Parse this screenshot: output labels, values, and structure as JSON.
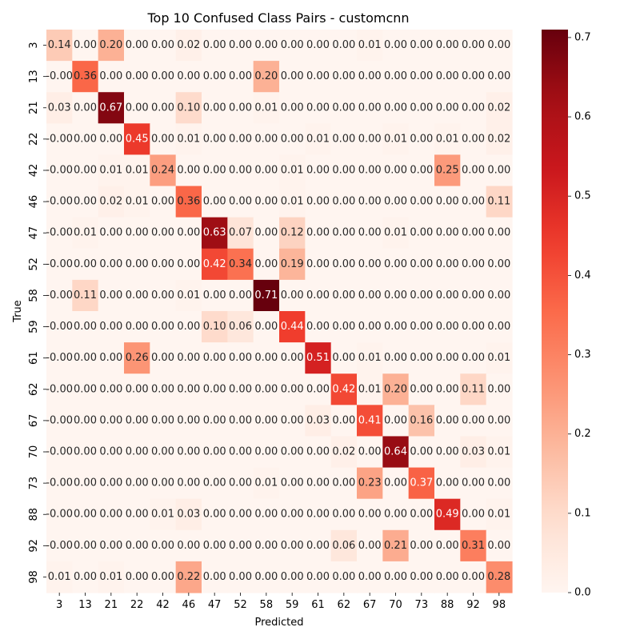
{
  "chart_data": {
    "type": "heatmap",
    "title": "Top 10 Confused Class Pairs - customcnn",
    "xlabel": "Predicted",
    "ylabel": "True",
    "x_categories": [
      "3",
      "13",
      "21",
      "22",
      "42",
      "46",
      "47",
      "52",
      "58",
      "59",
      "61",
      "62",
      "67",
      "70",
      "73",
      "88",
      "92",
      "98"
    ],
    "y_categories": [
      "3",
      "13",
      "21",
      "22",
      "42",
      "46",
      "47",
      "52",
      "58",
      "59",
      "61",
      "62",
      "67",
      "70",
      "73",
      "88",
      "92",
      "98"
    ],
    "values": [
      [
        "0.14",
        "0.00",
        "0.20",
        "0.00",
        "0.00",
        "0.02",
        "0.00",
        "0.00",
        "0.00",
        "0.00",
        "0.00",
        "0.00",
        "0.01",
        "0.00",
        "0.00",
        "0.00",
        "0.00",
        "0.00"
      ],
      [
        "-0.00",
        "0.36",
        "0.00",
        "0.00",
        "0.00",
        "0.00",
        "0.00",
        "0.00",
        "0.20",
        "0.00",
        "0.00",
        "0.00",
        "0.00",
        "0.00",
        "0.00",
        "0.00",
        "0.00",
        "0.00"
      ],
      [
        "0.03",
        "0.00",
        "0.67",
        "0.00",
        "0.00",
        "0.10",
        "0.00",
        "0.00",
        "0.01",
        "0.00",
        "0.00",
        "0.00",
        "0.00",
        "0.00",
        "0.00",
        "0.00",
        "0.00",
        "0.02"
      ],
      [
        "-0.00",
        "0.00",
        "0.00",
        "0.45",
        "0.00",
        "0.01",
        "0.00",
        "0.00",
        "0.00",
        "0.00",
        "0.01",
        "0.00",
        "0.00",
        "0.01",
        "0.00",
        "0.01",
        "0.00",
        "0.02"
      ],
      [
        "-0.00",
        "0.00",
        "0.01",
        "0.01",
        "0.24",
        "0.00",
        "0.00",
        "0.00",
        "0.00",
        "0.01",
        "0.00",
        "0.00",
        "0.00",
        "0.00",
        "0.00",
        "0.25",
        "0.00",
        "0.00"
      ],
      [
        "-0.00",
        "0.00",
        "0.02",
        "0.01",
        "0.00",
        "0.36",
        "0.00",
        "0.00",
        "0.00",
        "0.01",
        "0.00",
        "0.00",
        "0.00",
        "0.00",
        "0.00",
        "0.00",
        "0.00",
        "0.11"
      ],
      [
        "-0.00",
        "0.01",
        "0.00",
        "0.00",
        "0.00",
        "0.00",
        "0.63",
        "0.07",
        "0.00",
        "0.12",
        "0.00",
        "0.00",
        "0.00",
        "0.01",
        "0.00",
        "0.00",
        "0.00",
        "0.00"
      ],
      [
        "-0.00",
        "0.00",
        "0.00",
        "0.00",
        "0.00",
        "0.00",
        "0.42",
        "0.34",
        "0.00",
        "0.19",
        "0.00",
        "0.00",
        "0.00",
        "0.00",
        "0.00",
        "0.00",
        "0.00",
        "0.00"
      ],
      [
        "-0.00",
        "0.11",
        "0.00",
        "0.00",
        "0.00",
        "0.01",
        "0.00",
        "0.00",
        "0.71",
        "0.00",
        "0.00",
        "0.00",
        "0.00",
        "0.00",
        "0.00",
        "0.00",
        "0.00",
        "0.00"
      ],
      [
        "-0.00",
        "0.00",
        "0.00",
        "0.00",
        "0.00",
        "0.00",
        "0.10",
        "0.06",
        "0.00",
        "0.44",
        "0.00",
        "0.00",
        "0.00",
        "0.00",
        "0.00",
        "0.00",
        "0.00",
        "0.00"
      ],
      [
        "-0.00",
        "0.00",
        "0.00",
        "0.26",
        "0.00",
        "0.00",
        "0.00",
        "0.00",
        "0.00",
        "0.00",
        "0.51",
        "0.00",
        "0.01",
        "0.00",
        "0.00",
        "0.00",
        "0.00",
        "0.01"
      ],
      [
        "-0.00",
        "0.00",
        "0.00",
        "0.00",
        "0.00",
        "0.00",
        "0.00",
        "0.00",
        "0.00",
        "0.00",
        "0.00",
        "0.42",
        "0.01",
        "0.20",
        "0.00",
        "0.00",
        "0.11",
        "0.00"
      ],
      [
        "-0.00",
        "0.00",
        "0.00",
        "0.00",
        "0.00",
        "0.00",
        "0.00",
        "0.00",
        "0.00",
        "0.00",
        "0.03",
        "0.00",
        "0.41",
        "0.00",
        "0.16",
        "0.00",
        "0.00",
        "0.00"
      ],
      [
        "-0.00",
        "0.00",
        "0.00",
        "0.00",
        "0.00",
        "0.00",
        "0.00",
        "0.00",
        "0.00",
        "0.00",
        "0.00",
        "0.02",
        "0.00",
        "0.64",
        "0.00",
        "0.00",
        "0.03",
        "0.01"
      ],
      [
        "-0.00",
        "0.00",
        "0.00",
        "0.00",
        "0.00",
        "0.00",
        "0.00",
        "0.00",
        "0.01",
        "0.00",
        "0.00",
        "0.00",
        "0.23",
        "0.00",
        "0.37",
        "0.00",
        "0.00",
        "0.00"
      ],
      [
        "-0.00",
        "0.00",
        "0.00",
        "0.00",
        "0.01",
        "0.03",
        "0.00",
        "0.00",
        "0.00",
        "0.00",
        "0.00",
        "0.00",
        "0.00",
        "0.00",
        "0.00",
        "0.49",
        "0.00",
        "0.01"
      ],
      [
        "-0.00",
        "0.00",
        "0.00",
        "0.00",
        "0.00",
        "0.00",
        "0.00",
        "0.00",
        "0.00",
        "0.00",
        "0.00",
        "0.06",
        "0.00",
        "0.21",
        "0.00",
        "0.00",
        "0.31",
        "0.00"
      ],
      [
        "0.01",
        "0.00",
        "0.01",
        "0.00",
        "0.00",
        "0.22",
        "0.00",
        "0.00",
        "0.00",
        "0.00",
        "0.00",
        "0.00",
        "0.00",
        "0.00",
        "0.00",
        "0.00",
        "0.00",
        "0.28"
      ]
    ],
    "colorbar": {
      "min": 0,
      "max": 0.71,
      "ticks": [
        "0.0",
        "0.1",
        "0.2",
        "0.3",
        "0.4",
        "0.5",
        "0.6",
        "0.7"
      ]
    },
    "colormap": "Reds",
    "grid": false
  }
}
